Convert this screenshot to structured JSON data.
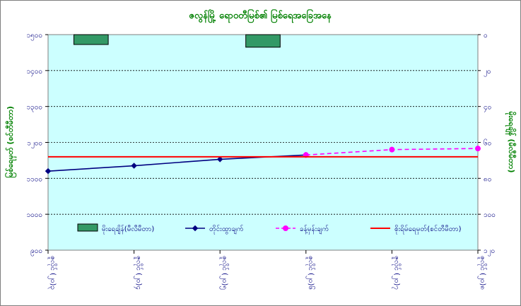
{
  "chart_data": {
    "type": "line",
    "title": "ဇလွန်မြို့ ရောဝတီမြစ်၏ မြစ်ရေအခြေအနေ",
    "ylabel_left": "မြစ်ရေမှတ် (စင်တီမီတာ)",
    "ylabel_right": "မိုးရေချိန် (မီလီမီတာ)",
    "x": [
      "ဇူလိုင် (၂၀)၃",
      "ဇူလိုင် (၂၀)၄",
      "ဇူလိုင် (၂၀)၅",
      "ဇူလိုင် (၂၀)၆",
      "ဇူလိုင် (၂၀)၇",
      "ဇူလိုင် (၂၀)၈"
    ],
    "ylim_left": [
      900,
      1500
    ],
    "yticks_left": [
      "၁၅၀၀",
      "၁၄၀၀",
      "၁၃၀၀",
      "၁၂၀၀",
      "၁၁၀၀",
      "၁၀၀၀",
      "၉၀၀"
    ],
    "ylim_right": [
      0,
      120
    ],
    "y_right_inverted": true,
    "yticks_right": [
      "၀",
      "၂၀",
      "၄၀",
      "၆၀",
      "၈၀",
      "၁၀၀",
      "၁၂၀"
    ],
    "grid": true,
    "legend_position": "bottom",
    "series": [
      {
        "name": "မိုးရေချိန်(မီလီမီတာ)",
        "kind": "bar",
        "axis": "right",
        "color": "#339966",
        "values": [
          null,
          5.5,
          null,
          7,
          null,
          null
        ]
      },
      {
        "name": "တိုင်းထွာချက်",
        "kind": "line",
        "axis": "left",
        "color": "#000080",
        "values": [
          1120,
          1135,
          1153,
          1165,
          null,
          null
        ]
      },
      {
        "name": "ခန့်မှန်းချက်",
        "kind": "dashed-line",
        "axis": "left",
        "color": "#ff00ff",
        "values": [
          null,
          null,
          null,
          1165,
          1180,
          1183
        ]
      },
      {
        "name": "စိုးရိမ်ရေမှတ်(စင်တီမီတာ)",
        "kind": "hline",
        "axis": "left",
        "color": "#ff0000",
        "values": [
          1160,
          1160,
          1160,
          1160,
          1160,
          1160
        ]
      }
    ]
  }
}
